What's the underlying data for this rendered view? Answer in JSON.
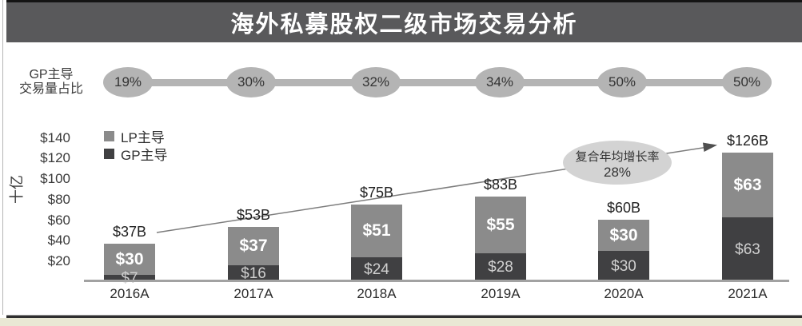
{
  "title": "海外私募股权二级市场交易分析",
  "gp_share_row": {
    "label_line1": "GP主导",
    "label_line2": "交易量占比",
    "values": [
      "19%",
      "30%",
      "32%",
      "34%",
      "50%",
      "50%"
    ]
  },
  "legend": {
    "items": [
      {
        "label": "LP主导",
        "color": "#8b8b8b"
      },
      {
        "label": "GP主导",
        "color": "#404042"
      }
    ]
  },
  "annotation": {
    "line1": "复合年均增长率",
    "line2": "28%"
  },
  "colors": {
    "title_bar": "#59595b",
    "lp_bar": "#8b8b8b",
    "gp_bar": "#404042",
    "oval_gray": "#b4b4b4",
    "annotation_fill": "#d3d3d3",
    "bottom_strip": "#e9e8d4"
  },
  "chart_data": {
    "type": "bar",
    "stacked": true,
    "title": "海外私募股权二级市场交易分析",
    "categories": [
      "2016A",
      "2017A",
      "2018A",
      "2019A",
      "2020A",
      "2021A"
    ],
    "series": [
      {
        "name": "GP主导",
        "values": [
          7,
          16,
          24,
          28,
          30,
          63
        ],
        "labels": [
          "$7",
          "$16",
          "$24",
          "$28",
          "$30",
          "$63"
        ],
        "color": "#404042"
      },
      {
        "name": "LP主导",
        "values": [
          30,
          37,
          51,
          55,
          30,
          63
        ],
        "labels": [
          "$30",
          "$37",
          "$51",
          "$55",
          "$30",
          "$63"
        ],
        "color": "#8b8b8b"
      }
    ],
    "totals": [
      37,
      53,
      75,
      83,
      60,
      126
    ],
    "total_labels": [
      "$37B",
      "$53B",
      "$75B",
      "$83B",
      "$60B",
      "$126B"
    ],
    "gp_share_percent": [
      19,
      30,
      32,
      34,
      50,
      50
    ],
    "cagr_label": "复合年均增长率",
    "cagr": "28%",
    "ylabel": "十亿",
    "ylim": [
      0,
      140
    ],
    "ytick_values": [
      140,
      120,
      100,
      80,
      60,
      40,
      20
    ],
    "ytick_labels": [
      "$140",
      "$120",
      "$100",
      "$80",
      "$60",
      "$40",
      "$20"
    ],
    "legend_position": "top-left",
    "grid": false
  }
}
